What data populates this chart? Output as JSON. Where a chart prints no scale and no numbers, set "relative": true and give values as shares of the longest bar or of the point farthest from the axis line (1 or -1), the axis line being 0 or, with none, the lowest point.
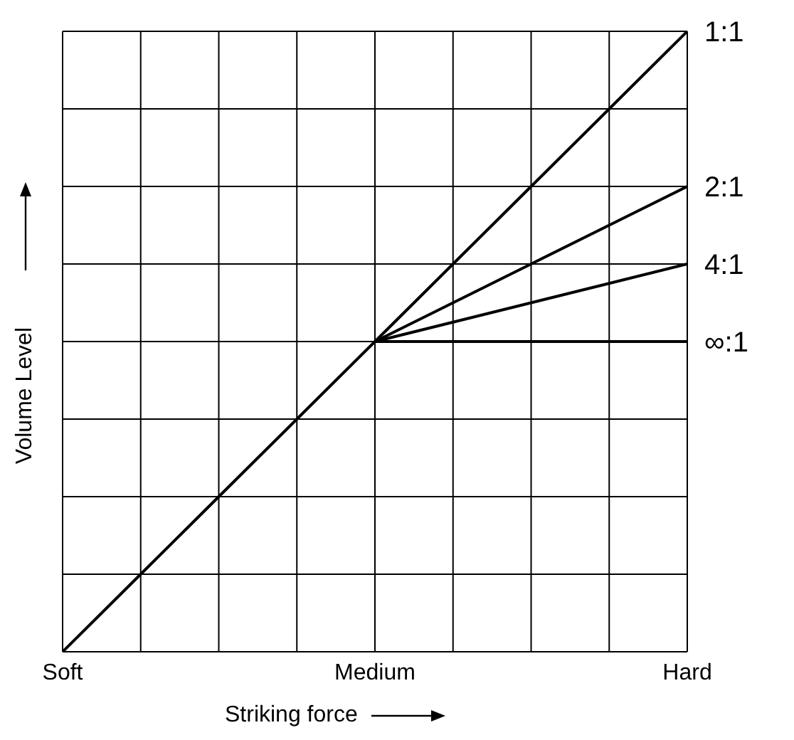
{
  "chart_data": {
    "type": "line",
    "relative": true,
    "xlabel": "Striking force",
    "ylabel": "Volume Level",
    "categories": [
      "Soft",
      null,
      null,
      null,
      "Medium",
      null,
      null,
      null,
      "Hard"
    ],
    "grid": true,
    "legend": false,
    "marker": "none",
    "line_style": "solid",
    "series": [
      {
        "name": "1:1",
        "color": "#000000",
        "values": [
          0,
          0.125,
          0.25,
          0.375,
          0.5,
          0.625,
          0.75,
          0.875,
          1
        ]
      },
      {
        "name": "2:1",
        "color": "#000000",
        "values": [
          null,
          null,
          null,
          null,
          0.5,
          0.5625,
          0.625,
          0.6875,
          0.75
        ]
      },
      {
        "name": "4:1",
        "color": "#000000",
        "values": [
          null,
          null,
          null,
          null,
          0.5,
          0.53125,
          0.5625,
          0.59375,
          0.625
        ]
      },
      {
        "name": "∞:1",
        "color": "#000000",
        "values": [
          null,
          null,
          null,
          null,
          0.5,
          0.5,
          0.5,
          0.5,
          0.5
        ]
      }
    ]
  }
}
